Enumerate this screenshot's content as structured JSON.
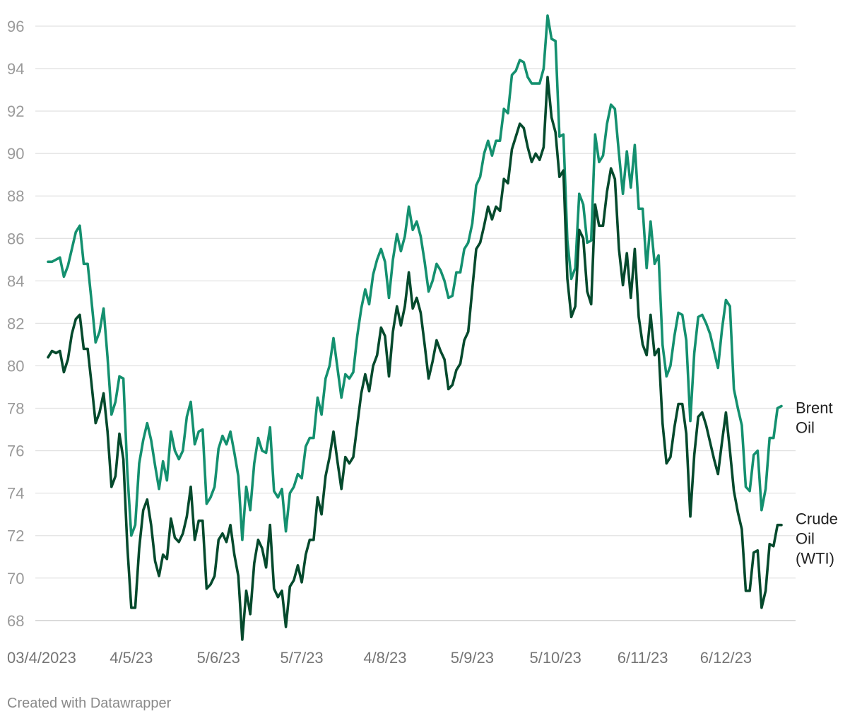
{
  "credit": "Created with Datawrapper",
  "chart_data": {
    "type": "line",
    "grid": true,
    "ylim": [
      67,
      96.5
    ],
    "yticks": [
      68,
      70,
      72,
      74,
      76,
      78,
      80,
      82,
      84,
      86,
      88,
      90,
      92,
      94,
      96
    ],
    "xticks": [
      {
        "label": "03/4/2023",
        "index": 0
      },
      {
        "label": "4/5/23",
        "index": 21
      },
      {
        "label": "5/6/23",
        "index": 43
      },
      {
        "label": "5/7/23",
        "index": 64
      },
      {
        "label": "4/8/23",
        "index": 85
      },
      {
        "label": "5/9/23",
        "index": 107
      },
      {
        "label": "5/10/23",
        "index": 128
      },
      {
        "label": "6/11/23",
        "index": 150
      },
      {
        "label": "6/12/23",
        "index": 171
      }
    ],
    "series": [
      {
        "name": "Brent Oil",
        "label_lines": [
          "Brent",
          "Oil"
        ],
        "color": "#14906f",
        "values": [
          84.9,
          84.9,
          85.0,
          85.1,
          84.2,
          84.7,
          85.5,
          86.3,
          86.6,
          84.8,
          84.8,
          83.0,
          81.1,
          81.6,
          82.7,
          80.4,
          77.7,
          78.3,
          79.5,
          79.4,
          75.0,
          72.0,
          72.5,
          75.4,
          76.5,
          77.3,
          76.5,
          75.3,
          74.2,
          75.5,
          74.6,
          76.9,
          76.0,
          75.6,
          76.0,
          77.6,
          78.3,
          76.3,
          76.9,
          77.0,
          73.5,
          73.8,
          74.3,
          76.1,
          76.7,
          76.3,
          76.9,
          75.9,
          74.8,
          71.8,
          74.3,
          73.2,
          75.4,
          76.6,
          76.0,
          75.9,
          77.1,
          74.1,
          73.8,
          74.2,
          72.2,
          74.0,
          74.3,
          74.9,
          74.7,
          76.2,
          76.6,
          76.6,
          78.5,
          77.7,
          79.4,
          80.0,
          81.3,
          79.9,
          78.5,
          79.6,
          79.4,
          79.7,
          81.4,
          82.7,
          83.6,
          82.9,
          84.3,
          85.0,
          85.5,
          84.9,
          83.2,
          85.0,
          86.2,
          85.4,
          86.1,
          87.5,
          86.4,
          86.8,
          86.1,
          84.9,
          83.5,
          84.0,
          84.8,
          84.5,
          84.0,
          83.2,
          83.3,
          84.4,
          84.4,
          85.5,
          85.8,
          86.7,
          88.5,
          88.9,
          90.0,
          90.6,
          89.9,
          90.6,
          90.6,
          92.1,
          91.9,
          93.7,
          93.9,
          94.4,
          94.3,
          93.6,
          93.3,
          93.3,
          93.3,
          94.0,
          96.5,
          95.4,
          95.3,
          90.8,
          90.9,
          85.9,
          84.1,
          84.6,
          88.1,
          87.6,
          85.8,
          85.9,
          90.9,
          89.6,
          89.9,
          91.4,
          92.3,
          92.1,
          90.0,
          88.1,
          90.1,
          88.4,
          90.4,
          87.4,
          87.4,
          84.6,
          86.8,
          84.8,
          85.2,
          81.0,
          79.5,
          80.0,
          81.4,
          82.5,
          82.4,
          81.2,
          77.4,
          80.6,
          82.3,
          82.4,
          82.0,
          81.5,
          80.7,
          79.9,
          81.7,
          83.1,
          82.8,
          78.9,
          78.0,
          77.2,
          74.3,
          74.1,
          75.8,
          76.0,
          73.2,
          74.2,
          76.6,
          76.6,
          78.0,
          78.1
        ]
      },
      {
        "name": "Crude Oil (WTI)",
        "label_lines": [
          "Crude",
          "Oil",
          "(WTI)"
        ],
        "color": "#054a2d",
        "values": [
          80.4,
          80.7,
          80.6,
          80.7,
          79.7,
          80.3,
          81.5,
          82.2,
          82.4,
          80.8,
          80.8,
          79.1,
          77.3,
          77.8,
          78.7,
          76.9,
          74.3,
          74.8,
          76.8,
          75.6,
          71.5,
          68.6,
          68.6,
          71.4,
          73.2,
          73.7,
          72.5,
          70.8,
          70.1,
          71.1,
          70.9,
          72.8,
          71.9,
          71.7,
          72.1,
          72.9,
          74.3,
          71.8,
          72.7,
          72.7,
          69.5,
          69.7,
          70.1,
          71.8,
          72.1,
          71.7,
          72.5,
          71.1,
          70.1,
          67.1,
          69.4,
          68.3,
          70.7,
          71.8,
          71.4,
          70.5,
          72.5,
          69.5,
          69.1,
          69.4,
          67.7,
          69.6,
          69.9,
          70.6,
          69.8,
          71.1,
          71.8,
          71.8,
          73.8,
          73.0,
          74.8,
          75.7,
          76.9,
          75.5,
          74.2,
          75.7,
          75.4,
          75.7,
          77.2,
          78.7,
          79.6,
          78.8,
          80.0,
          80.5,
          81.8,
          81.4,
          79.5,
          81.6,
          82.8,
          81.9,
          82.8,
          84.4,
          82.7,
          83.2,
          82.5,
          81.0,
          79.4,
          80.2,
          81.2,
          80.7,
          80.3,
          78.9,
          79.1,
          79.8,
          80.1,
          81.2,
          81.6,
          83.6,
          85.5,
          85.8,
          86.6,
          87.5,
          86.9,
          87.5,
          87.3,
          88.8,
          88.6,
          90.2,
          90.8,
          91.4,
          91.2,
          90.3,
          89.6,
          90.0,
          89.7,
          90.3,
          93.6,
          91.7,
          91.0,
          88.9,
          89.2,
          84.1,
          82.3,
          82.8,
          86.4,
          86.0,
          83.5,
          82.9,
          87.6,
          86.6,
          86.6,
          88.2,
          89.3,
          88.8,
          85.5,
          83.8,
          85.3,
          83.2,
          85.5,
          82.3,
          81.0,
          80.5,
          82.4,
          80.5,
          80.8,
          77.3,
          75.4,
          75.7,
          77.1,
          78.2,
          78.2,
          76.8,
          72.9,
          75.8,
          77.6,
          77.8,
          77.2,
          76.4,
          75.6,
          74.9,
          76.4,
          77.8,
          76.0,
          74.1,
          73.1,
          72.3,
          69.4,
          69.4,
          71.2,
          71.3,
          68.6,
          69.4,
          71.6,
          71.5,
          72.5,
          72.5
        ]
      }
    ]
  }
}
